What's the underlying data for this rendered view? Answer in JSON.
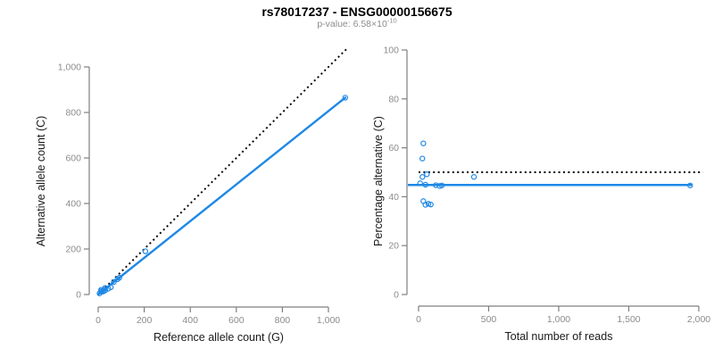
{
  "header": {
    "title": "rs78017237 - ENSG00000156675",
    "subtitle_text": "p-value: 6.58×10",
    "subtitle_exponent": "-10"
  },
  "colors": {
    "accent_blue": "#1E88E5",
    "dotted_line": "#000000",
    "axis_line": "#7f7f7f",
    "tick_label": "#8c8c8c",
    "axis_title": "#1a1a1a"
  },
  "chart_data": [
    {
      "id": "allele-counts",
      "type": "scatter",
      "xlabel": "Reference allele count (G)",
      "ylabel": "Alternative allele count (C)",
      "xlim": [
        0,
        1110
      ],
      "ylim": [
        0,
        1080
      ],
      "xticks": [
        0,
        200,
        400,
        600,
        800,
        1000
      ],
      "xtick_labels": [
        "0",
        "200",
        "400",
        "600",
        "800",
        "1,000"
      ],
      "yticks": [
        0,
        200,
        400,
        600,
        800,
        1000
      ],
      "ytick_labels": [
        "0",
        "200",
        "400",
        "600",
        "800",
        "1,000"
      ],
      "grid": false,
      "legend": false,
      "points": [
        [
          6,
          5
        ],
        [
          12,
          15
        ],
        [
          13,
          21
        ],
        [
          14,
          13
        ],
        [
          21,
          13
        ],
        [
          27,
          22
        ],
        [
          30,
          29
        ],
        [
          31,
          18
        ],
        [
          44,
          26
        ],
        [
          55,
          32
        ],
        [
          68,
          55
        ],
        [
          84,
          67
        ],
        [
          92,
          74
        ],
        [
          205,
          190
        ],
        [
          1073,
          865
        ]
      ],
      "identity_line": {
        "style": "dotted",
        "from": [
          0,
          0
        ],
        "to": [
          1085,
          1085
        ]
      },
      "fit_line": {
        "style": "solid",
        "from": [
          0,
          0
        ],
        "to": [
          1073,
          865
        ]
      }
    },
    {
      "id": "percentage-vs-reads",
      "type": "scatter",
      "xlabel": "Total number of reads",
      "ylabel": "Percentage alternative (C)",
      "xlim": [
        0,
        2050
      ],
      "ylim": [
        0,
        100
      ],
      "xticks": [
        0,
        500,
        1000,
        1500,
        2000
      ],
      "xtick_labels": [
        "0",
        "500",
        "1,000",
        "1,500",
        "2,000"
      ],
      "yticks": [
        0,
        20,
        40,
        60,
        80,
        100
      ],
      "ytick_labels": [
        "0",
        "20",
        "40",
        "60",
        "80",
        "100"
      ],
      "grid": false,
      "legend": false,
      "points": [
        [
          11,
          45.5
        ],
        [
          27,
          55.6
        ],
        [
          34,
          61.8
        ],
        [
          27,
          48.1
        ],
        [
          34,
          38.2
        ],
        [
          49,
          44.9
        ],
        [
          59,
          49.2
        ],
        [
          49,
          36.7
        ],
        [
          70,
          37.1
        ],
        [
          87,
          36.8
        ],
        [
          123,
          44.7
        ],
        [
          151,
          44.4
        ],
        [
          166,
          44.6
        ],
        [
          395,
          48.1
        ],
        [
          1938,
          44.6
        ]
      ],
      "reference_hline": {
        "style": "dotted",
        "y": 50,
        "x_from": 0,
        "x_to": 2030
      },
      "fit_hline": {
        "style": "solid",
        "y": 44.8,
        "x_to": 1950
      }
    }
  ]
}
